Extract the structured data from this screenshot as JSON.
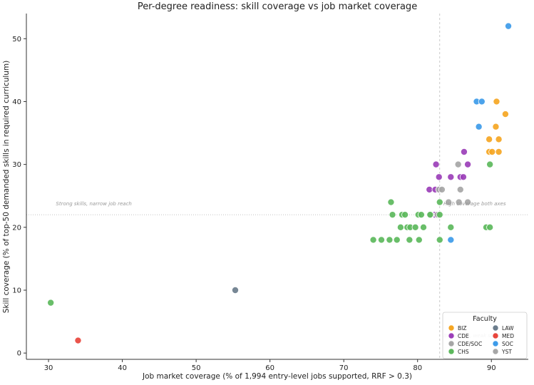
{
  "chart_data": {
    "type": "scatter",
    "title": "Per-degree readiness: skill coverage vs job market coverage",
    "xlabel": "Job market coverage (% of 1,994 entry-level jobs supported, RRF > 0.3)",
    "ylabel": "Skill coverage (% of top-50 demanded skills in required curriculum)",
    "xlim": [
      27,
      95
    ],
    "ylim": [
      -1,
      54
    ],
    "x_ticks": [
      30,
      40,
      50,
      60,
      70,
      80,
      90
    ],
    "y_ticks": [
      0,
      10,
      20,
      30,
      40,
      50
    ],
    "grid": false,
    "reference_lines": {
      "x": 83,
      "y": 22
    },
    "annotations": [
      {
        "text": "Strong skills, narrow job reach",
        "x": 31,
        "y": 23.5
      },
      {
        "text": "High coverage both axes",
        "x": 83.5,
        "y": 23.5
      },
      {
        "text": "Broad jobs, weak skills",
        "x": 83.5,
        "y": 2.5
      }
    ],
    "legend": {
      "title": "Faculty",
      "placement": "lower-right"
    },
    "series": [
      {
        "name": "BIZ",
        "color": "#f5a623",
        "points": [
          [
            90.7,
            40
          ],
          [
            91.9,
            38
          ],
          [
            90.6,
            36
          ],
          [
            91.0,
            34
          ],
          [
            89.7,
            34
          ],
          [
            89.7,
            32
          ],
          [
            90.1,
            32
          ],
          [
            91.0,
            32
          ]
        ]
      },
      {
        "name": "CDE",
        "color": "#9b3fb8",
        "points": [
          [
            86.3,
            32
          ],
          [
            86.8,
            30
          ],
          [
            82.5,
            30
          ],
          [
            82.9,
            28
          ],
          [
            84.5,
            28
          ],
          [
            85.8,
            28
          ],
          [
            86.2,
            28
          ],
          [
            81.6,
            26
          ],
          [
            82.4,
            26
          ],
          [
            83.0,
            26
          ],
          [
            82.3,
            22
          ]
        ]
      },
      {
        "name": "CDE/SOC",
        "color": "#a6a6a6",
        "points": [
          [
            85.5,
            30
          ],
          [
            82.9,
            26
          ],
          [
            83.3,
            26
          ],
          [
            85.8,
            26
          ],
          [
            84.2,
            24
          ],
          [
            85.6,
            24
          ],
          [
            86.8,
            24
          ],
          [
            81.8,
            22
          ],
          [
            82.7,
            22
          ]
        ]
      },
      {
        "name": "CHS",
        "color": "#5cb85c",
        "points": [
          [
            30.3,
            8
          ],
          [
            76.4,
            24
          ],
          [
            83.0,
            24
          ],
          [
            76.6,
            22
          ],
          [
            77.9,
            22
          ],
          [
            78.3,
            22
          ],
          [
            80.1,
            22
          ],
          [
            80.5,
            22
          ],
          [
            81.7,
            22
          ],
          [
            83.0,
            22
          ],
          [
            77.7,
            20
          ],
          [
            78.6,
            20
          ],
          [
            79.0,
            20
          ],
          [
            79.7,
            20
          ],
          [
            80.8,
            20
          ],
          [
            84.5,
            20
          ],
          [
            89.3,
            20
          ],
          [
            89.8,
            20
          ],
          [
            74.0,
            18
          ],
          [
            75.1,
            18
          ],
          [
            76.2,
            18
          ],
          [
            77.2,
            18
          ],
          [
            78.9,
            18
          ],
          [
            80.2,
            18
          ],
          [
            83.0,
            18
          ],
          [
            89.8,
            30
          ]
        ]
      },
      {
        "name": "LAW",
        "color": "#6b7d8c",
        "points": [
          [
            55.3,
            10
          ]
        ]
      },
      {
        "name": "MED",
        "color": "#e8453c",
        "points": [
          [
            34.0,
            2
          ]
        ]
      },
      {
        "name": "SOC",
        "color": "#3d9be9",
        "points": [
          [
            92.3,
            52
          ],
          [
            88.0,
            40
          ],
          [
            88.7,
            40
          ],
          [
            88.3,
            36
          ],
          [
            84.5,
            18
          ]
        ]
      },
      {
        "name": "YST",
        "color": "#a6a6a6",
        "points": []
      }
    ]
  }
}
